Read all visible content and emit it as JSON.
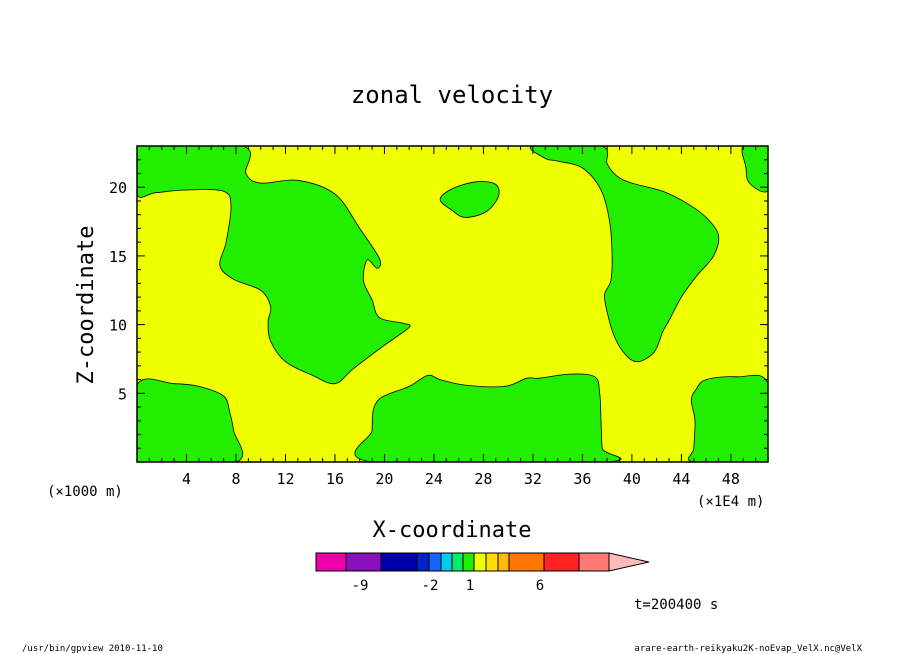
{
  "chart_data": {
    "type": "heatmap",
    "title": "zonal velocity",
    "xlabel": "X-coordinate",
    "ylabel": "Z-coordinate",
    "x_unit": "(×1000 m)",
    "x_unit_right": "(×1E4 m)",
    "xlim": [
      0,
      51
    ],
    "ylim": [
      0,
      23
    ],
    "xticks": [
      "4",
      "8",
      "12",
      "16",
      "20",
      "24",
      "28",
      "32",
      "36",
      "40",
      "44",
      "48"
    ],
    "yticks": [
      "5",
      "10",
      "15",
      "20"
    ],
    "fill_colors": {
      "below": "#22ee00",
      "above": "#eeff00"
    },
    "regions_below": [
      {
        "name": "top-left-strip",
        "points": [
          [
            0,
            23
          ],
          [
            8.5,
            23
          ],
          [
            8.8,
            21
          ],
          [
            10,
            20.3
          ],
          [
            13,
            20.5
          ],
          [
            16,
            19.5
          ],
          [
            18,
            17
          ],
          [
            19.6,
            14.8
          ],
          [
            19.4,
            14.1
          ],
          [
            18.6,
            14.7
          ],
          [
            18.3,
            13.2
          ],
          [
            19,
            11.8
          ],
          [
            19.6,
            10.5
          ],
          [
            21.5,
            10.1
          ],
          [
            22,
            9.8
          ],
          [
            20,
            8.5
          ],
          [
            17.5,
            6.8
          ],
          [
            16,
            5.7
          ],
          [
            14.2,
            6.3
          ],
          [
            12,
            7.3
          ],
          [
            10.8,
            8.8
          ],
          [
            10.6,
            10.2
          ],
          [
            10.8,
            11.3
          ],
          [
            10,
            12.5
          ],
          [
            7.8,
            13.3
          ],
          [
            6.7,
            14.3
          ],
          [
            7.2,
            16
          ],
          [
            7.6,
            18.6
          ],
          [
            7,
            19.7
          ],
          [
            4,
            19.8
          ],
          [
            1.5,
            19.6
          ],
          [
            0,
            19.5
          ]
        ]
      },
      {
        "name": "top-right-corner",
        "points": [
          [
            49,
            23
          ],
          [
            51,
            23
          ],
          [
            51,
            19.8
          ],
          [
            49.5,
            20.3
          ],
          [
            49.2,
            21.5
          ]
        ]
      },
      {
        "name": "island-upper",
        "points": [
          [
            24.5,
            19.1
          ],
          [
            25.5,
            19.9
          ],
          [
            27.5,
            20.4
          ],
          [
            29,
            20.2
          ],
          [
            29.2,
            19.3
          ],
          [
            28.2,
            18.2
          ],
          [
            26.5,
            17.8
          ],
          [
            25.5,
            18.3
          ]
        ]
      },
      {
        "name": "right-column",
        "points": [
          [
            32,
            23
          ],
          [
            37.5,
            23
          ],
          [
            38,
            21.7
          ],
          [
            38.8,
            20.8
          ],
          [
            40,
            20.3
          ],
          [
            42.5,
            19.7
          ],
          [
            44.5,
            18.8
          ],
          [
            46,
            17.8
          ],
          [
            47,
            16.5
          ],
          [
            46.6,
            15
          ],
          [
            45.2,
            13.5
          ],
          [
            44,
            12
          ],
          [
            43,
            10.3
          ],
          [
            42.5,
            9.5
          ],
          [
            41.8,
            8
          ],
          [
            40.5,
            7.3
          ],
          [
            39.5,
            7.8
          ],
          [
            38.6,
            9.1
          ],
          [
            38,
            10.9
          ],
          [
            37.8,
            12.2
          ],
          [
            38.3,
            13.2
          ],
          [
            38.4,
            15
          ],
          [
            38.2,
            17.5
          ],
          [
            37.5,
            19.8
          ],
          [
            36,
            21.4
          ],
          [
            34,
            21.9
          ],
          [
            33,
            22.1
          ]
        ]
      },
      {
        "name": "bottom-left",
        "points": [
          [
            0,
            0
          ],
          [
            8,
            0
          ],
          [
            7.8,
            2.3
          ],
          [
            7.5,
            3.6
          ],
          [
            7,
            4.8
          ],
          [
            5,
            5.5
          ],
          [
            3,
            5.7
          ],
          [
            0,
            5.6
          ]
        ]
      },
      {
        "name": "bottom-mid",
        "points": [
          [
            19,
            0
          ],
          [
            37.8,
            0
          ],
          [
            37.6,
            1
          ],
          [
            37.5,
            3
          ],
          [
            37.4,
            5
          ],
          [
            37,
            6.2
          ],
          [
            35,
            6.4
          ],
          [
            32.5,
            6.1
          ],
          [
            31.5,
            6.1
          ],
          [
            29.7,
            5.5
          ],
          [
            26.5,
            5.6
          ],
          [
            24.5,
            6
          ],
          [
            23.5,
            6.3
          ],
          [
            22,
            5.5
          ],
          [
            20.5,
            5
          ],
          [
            19.6,
            4.6
          ],
          [
            19.1,
            3.8
          ],
          [
            19,
            2.3
          ]
        ]
      },
      {
        "name": "bottom-right",
        "points": [
          [
            45,
            0
          ],
          [
            51,
            0
          ],
          [
            51,
            5.7
          ],
          [
            48.5,
            6.2
          ],
          [
            46,
            6
          ],
          [
            45.2,
            5.3
          ],
          [
            44.8,
            4.5
          ],
          [
            45.1,
            3
          ],
          [
            45,
            1
          ]
        ]
      }
    ],
    "colorbar": {
      "colors": [
        "#ee00aa",
        "#8811bb",
        "#0000aa",
        "#0022cc",
        "#1166ff",
        "#00ccee",
        "#00ee66",
        "#22ee00",
        "#eeff00",
        "#ffdd00",
        "#ffbb00",
        "#ff7700",
        "#ff2222",
        "#ff7777",
        "#ffbbbb"
      ],
      "widths": [
        30,
        35,
        36,
        12,
        12,
        11,
        11,
        11,
        12,
        12,
        11,
        35,
        35,
        30,
        40
      ],
      "labels": [
        "-9",
        "-2",
        "1",
        "6"
      ]
    },
    "time_label": "t=200400 s"
  },
  "footer": {
    "left": "/usr/bin/gpview   2010-11-10",
    "right": "arare-earth-reikyaku2K-noEvap_VelX.nc@VelX"
  }
}
